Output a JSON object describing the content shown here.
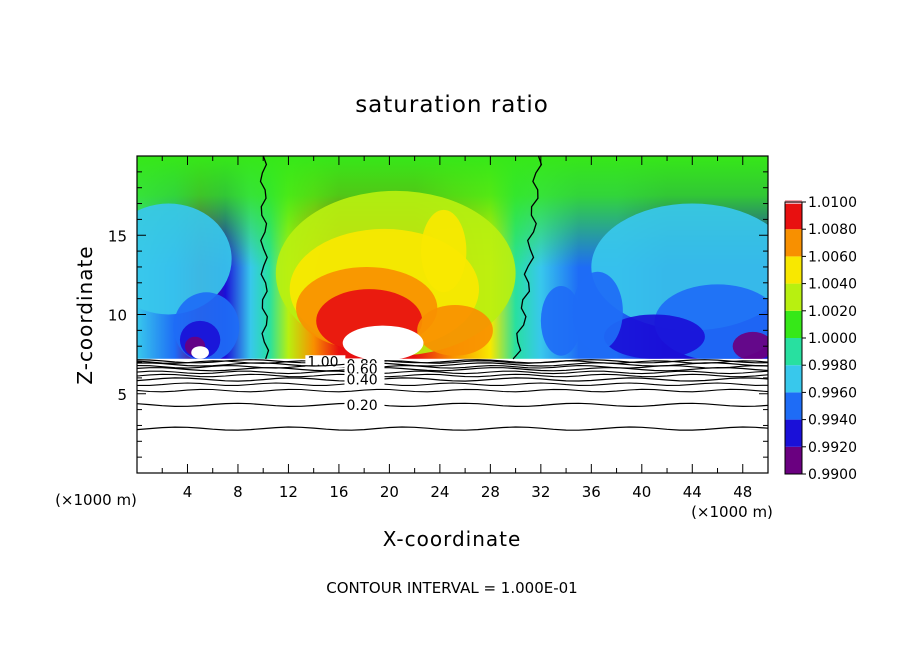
{
  "chart_data": {
    "type": "heatmap",
    "title": "saturation ratio",
    "xlabel": "X-coordinate",
    "ylabel": "Z-coordinate",
    "x_unit_left": "(×1000 m)",
    "x_unit_right": "(×1000 m)",
    "xlim": [
      0,
      50
    ],
    "ylim": [
      0,
      20
    ],
    "xticks": [
      4,
      8,
      12,
      16,
      20,
      24,
      28,
      32,
      36,
      40,
      44,
      48
    ],
    "xtick_labels": [
      "4",
      "8",
      "12",
      "16",
      "20",
      "24",
      "28",
      "32",
      "36",
      "40",
      "44",
      "48"
    ],
    "yticks": [
      5,
      10,
      15
    ],
    "ytick_labels": [
      "5",
      "10",
      "15"
    ],
    "colorbar": {
      "levels": [
        0.99,
        0.992,
        0.994,
        0.996,
        0.998,
        1.0,
        1.002,
        1.004,
        1.006,
        1.008,
        1.01
      ],
      "labels": [
        "0.9900",
        "0.9920",
        "0.9940",
        "0.9960",
        "0.9980",
        "1.0000",
        "1.0020",
        "1.0040",
        "1.0060",
        "1.0080",
        "1.0100"
      ],
      "colors": [
        "#6a0080",
        "#1a10d8",
        "#1e6cf6",
        "#38c8ec",
        "#28e0a0",
        "#36e818",
        "#b8f010",
        "#f8e800",
        "#f89000",
        "#e81010",
        "#f0a8b0"
      ]
    },
    "cloud_base_z": 7.2,
    "surface_fill": [
      {
        "x": 0,
        "v": 0.996
      },
      {
        "x": 3,
        "v": 0.995
      },
      {
        "x": 5,
        "v": 0.9915
      },
      {
        "x": 7,
        "v": 0.9935
      },
      {
        "x": 9,
        "v": 0.9965
      },
      {
        "x": 10.5,
        "v": 0.9995
      },
      {
        "x": 12,
        "v": 1.002
      },
      {
        "x": 14,
        "v": 1.006
      },
      {
        "x": 16,
        "v": 1.0085
      },
      {
        "x": 19,
        "v": 1.009
      },
      {
        "x": 22,
        "v": 1.0085
      },
      {
        "x": 25,
        "v": 1.007
      },
      {
        "x": 28,
        "v": 1.004
      },
      {
        "x": 30,
        "v": 0.9995
      },
      {
        "x": 32,
        "v": 0.997
      },
      {
        "x": 35,
        "v": 0.9955
      },
      {
        "x": 38,
        "v": 0.994
      },
      {
        "x": 42,
        "v": 0.993
      },
      {
        "x": 45,
        "v": 0.9935
      },
      {
        "x": 48,
        "v": 0.9925
      },
      {
        "x": 50,
        "v": 0.9935
      }
    ],
    "contour_lines": [
      {
        "label": "1.00",
        "z": 7.05
      },
      {
        "label": "0.80",
        "z": 6.85
      },
      {
        "label": "0.60",
        "z": 6.55
      },
      {
        "label": "0.40",
        "z": 5.9
      },
      {
        "label": "0.20",
        "z": 4.3
      },
      {
        "label": "",
        "z": 2.8
      }
    ],
    "contour_interval_text": "CONTOUR INTERVAL = 1.000E-01"
  }
}
